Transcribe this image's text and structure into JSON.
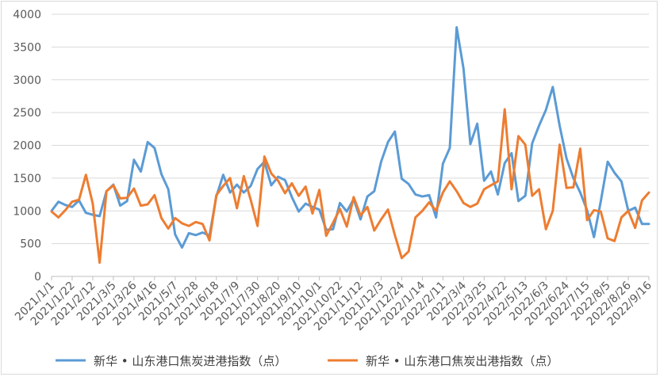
{
  "chart_data": {
    "type": "line",
    "title": "",
    "xlabel": "",
    "ylabel": "",
    "ylim": [
      0,
      4000
    ],
    "yticks": [
      0,
      500,
      1000,
      1500,
      2000,
      2500,
      3000,
      3500,
      4000
    ],
    "grid": true,
    "legend": "bottom",
    "x_tick_labels": [
      "2021/1/1",
      "2021/1/22",
      "2021/2/12",
      "2021/3/5",
      "2021/3/26",
      "2021/4/16",
      "2021/5/7",
      "2021/5/28",
      "2021/6/18",
      "2021/7/9",
      "2021/7/30",
      "2021/8/20",
      "2021/9/10",
      "2021/10/1",
      "2021/10/22",
      "2021/11/12",
      "2021/12/3",
      "2021/12/24",
      "2022/1/14",
      "2022/2/11",
      "2022/3/4",
      "2022/3/25",
      "2022/4/22",
      "2022/5/13",
      "2022/6/3",
      "2022/6/24",
      "2022/7/15",
      "2022/8/5",
      "2022/8/26",
      "2022/9/16"
    ],
    "series": [
      {
        "name": "新华 • 山东港口焦炭进港指数（点）",
        "color": "#5b9bd5",
        "values": [
          1000,
          1140,
          1090,
          1060,
          1160,
          970,
          940,
          920,
          1300,
          1400,
          1080,
          1150,
          1780,
          1600,
          2050,
          1960,
          1560,
          1330,
          640,
          440,
          660,
          630,
          670,
          620,
          1220,
          1550,
          1280,
          1400,
          1280,
          1380,
          1640,
          1750,
          1390,
          1520,
          1470,
          1210,
          990,
          1110,
          1060,
          1020,
          710,
          720,
          1120,
          990,
          1180,
          870,
          1220,
          1300,
          1750,
          2050,
          2210,
          1490,
          1410,
          1250,
          1220,
          1240,
          900,
          1720,
          1960,
          3800,
          3170,
          2020,
          2330,
          1460,
          1600,
          1250,
          1730,
          1880,
          1150,
          1230,
          2030,
          2300,
          2540,
          2890,
          2300,
          1800,
          1500,
          1280,
          1010,
          600,
          1150,
          1750,
          1580,
          1450,
          1000,
          1050,
          800,
          800
        ]
      },
      {
        "name": "新华 • 山东港口焦炭出港指数（点）",
        "color": "#ed7d31",
        "values": [
          990,
          900,
          1010,
          1140,
          1170,
          1550,
          1110,
          210,
          1300,
          1390,
          1190,
          1200,
          1340,
          1080,
          1100,
          1240,
          890,
          730,
          890,
          810,
          770,
          830,
          800,
          550,
          1240,
          1380,
          1500,
          1040,
          1530,
          1170,
          770,
          1830,
          1570,
          1460,
          1270,
          1420,
          1230,
          1370,
          960,
          1320,
          620,
          820,
          1030,
          760,
          1210,
          930,
          1060,
          700,
          870,
          1020,
          630,
          280,
          380,
          900,
          1000,
          1130,
          1000,
          1280,
          1450,
          1300,
          1120,
          1060,
          1110,
          1330,
          1390,
          1450,
          2550,
          1330,
          2140,
          2010,
          1230,
          1330,
          720,
          1000,
          2010,
          1350,
          1360,
          1950,
          860,
          1010,
          990,
          580,
          540,
          900,
          1000,
          740,
          1160,
          1280
        ]
      }
    ]
  }
}
